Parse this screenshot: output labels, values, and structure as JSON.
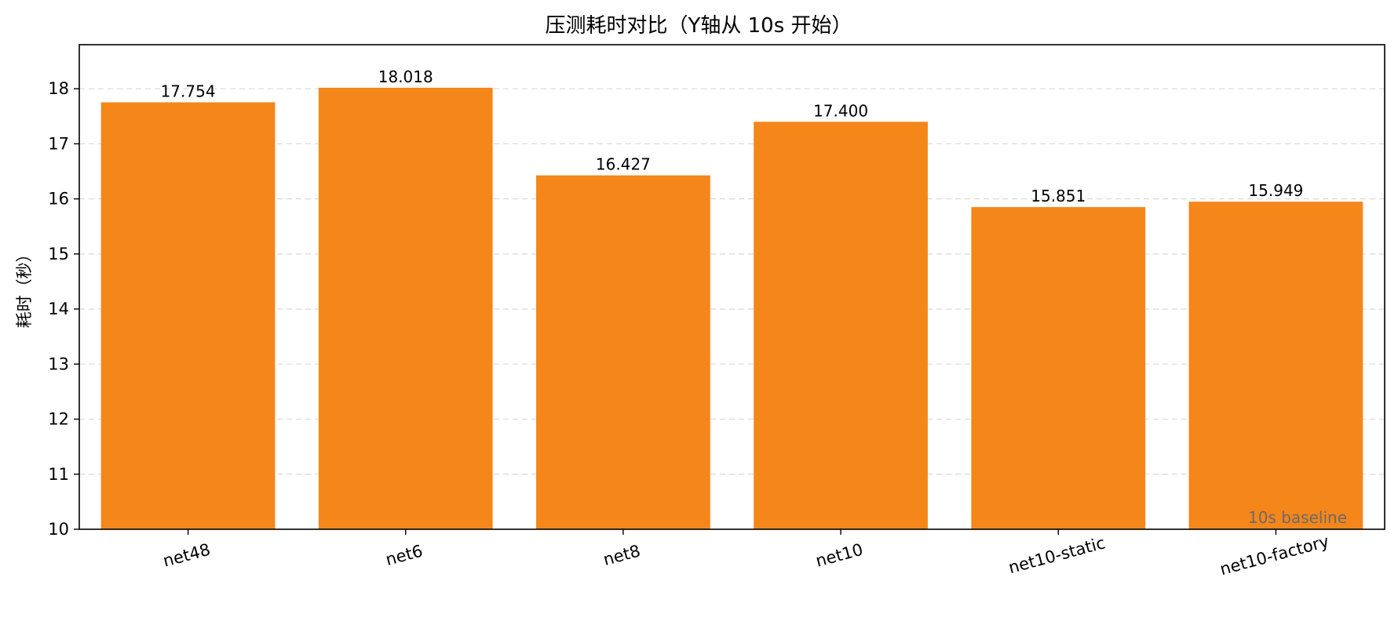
{
  "chart_data": {
    "type": "bar",
    "title": "压测耗时对比（Y轴从 10s 开始）",
    "xlabel": "",
    "ylabel": "耗时（秒）",
    "categories": [
      "net48",
      "net6",
      "net8",
      "net10",
      "net10-static",
      "net10-factory"
    ],
    "values": [
      17.754,
      18.018,
      16.427,
      17.4,
      15.851,
      15.949
    ],
    "value_labels": [
      "17.754",
      "18.018",
      "16.427",
      "17.400",
      "15.851",
      "15.949"
    ],
    "ylim": [
      10,
      18.8
    ],
    "yticks": [
      10,
      11,
      12,
      13,
      14,
      15,
      16,
      17,
      18
    ],
    "grid": "y-dashed",
    "bar_color": "#f5861a",
    "annotation": "10s baseline"
  }
}
